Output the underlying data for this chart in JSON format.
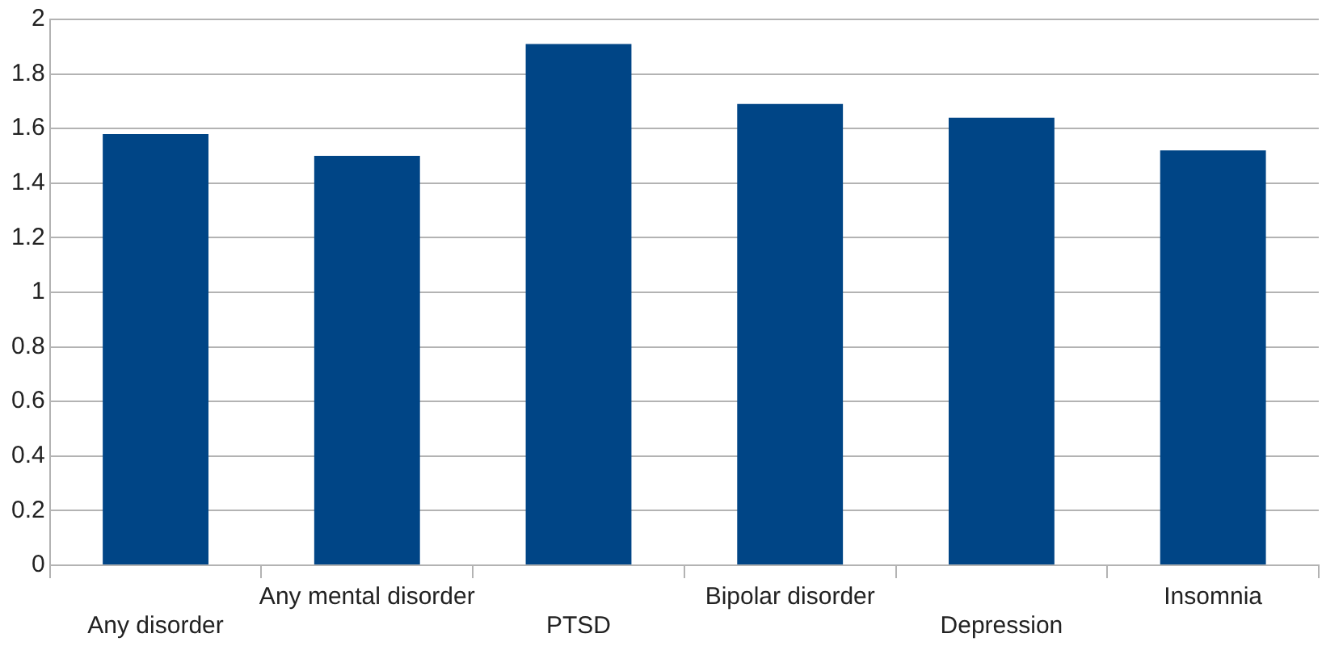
{
  "chart_data": {
    "type": "bar",
    "categories": [
      "Any disorder",
      "Any mental disorder",
      "PTSD",
      "Bipolar disorder",
      "Depression",
      "Insomnia"
    ],
    "values": [
      1.58,
      1.5,
      1.91,
      1.69,
      1.64,
      1.52
    ],
    "color": "#004586",
    "ylim": [
      0,
      2
    ],
    "yticks": [
      0,
      0.2,
      0.4,
      0.6,
      0.8,
      1,
      1.2,
      1.4,
      1.6,
      1.8,
      2
    ],
    "grid": "y"
  }
}
